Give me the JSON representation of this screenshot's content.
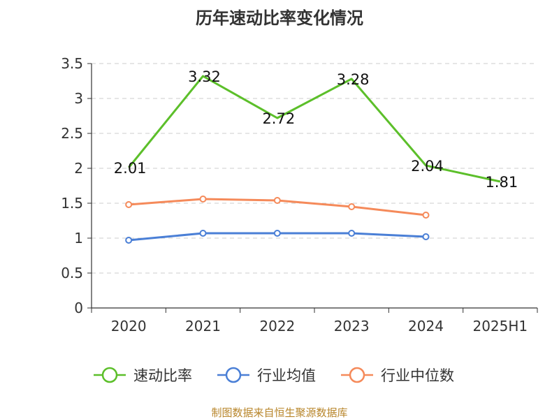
{
  "chart_data": {
    "type": "line",
    "title": "历年速动比率变化情况",
    "categories": [
      "2020",
      "2021",
      "2022",
      "2023",
      "2024",
      "2025H1"
    ],
    "ylim": [
      0,
      3.5
    ],
    "yticks": [
      "0",
      "0.5",
      "1",
      "1.5",
      "2",
      "2.5",
      "3",
      "3.5"
    ],
    "grid": true,
    "legend_position": "bottom",
    "series": [
      {
        "name": "速动比率",
        "color": "#5cbf2a",
        "values": [
          2.01,
          3.32,
          2.72,
          3.28,
          2.04,
          1.81
        ],
        "labels": [
          "2.01",
          "3.32",
          "2.72",
          "3.28",
          "2.04",
          "1.81"
        ]
      },
      {
        "name": "行业均值",
        "color": "#4a7fd6",
        "values": [
          0.97,
          1.07,
          1.07,
          1.07,
          1.02,
          null
        ]
      },
      {
        "name": "行业中位数",
        "color": "#f58a5a",
        "values": [
          1.48,
          1.56,
          1.54,
          1.45,
          1.33,
          null
        ]
      }
    ]
  },
  "source": "制图数据来自恒生聚源数据库"
}
